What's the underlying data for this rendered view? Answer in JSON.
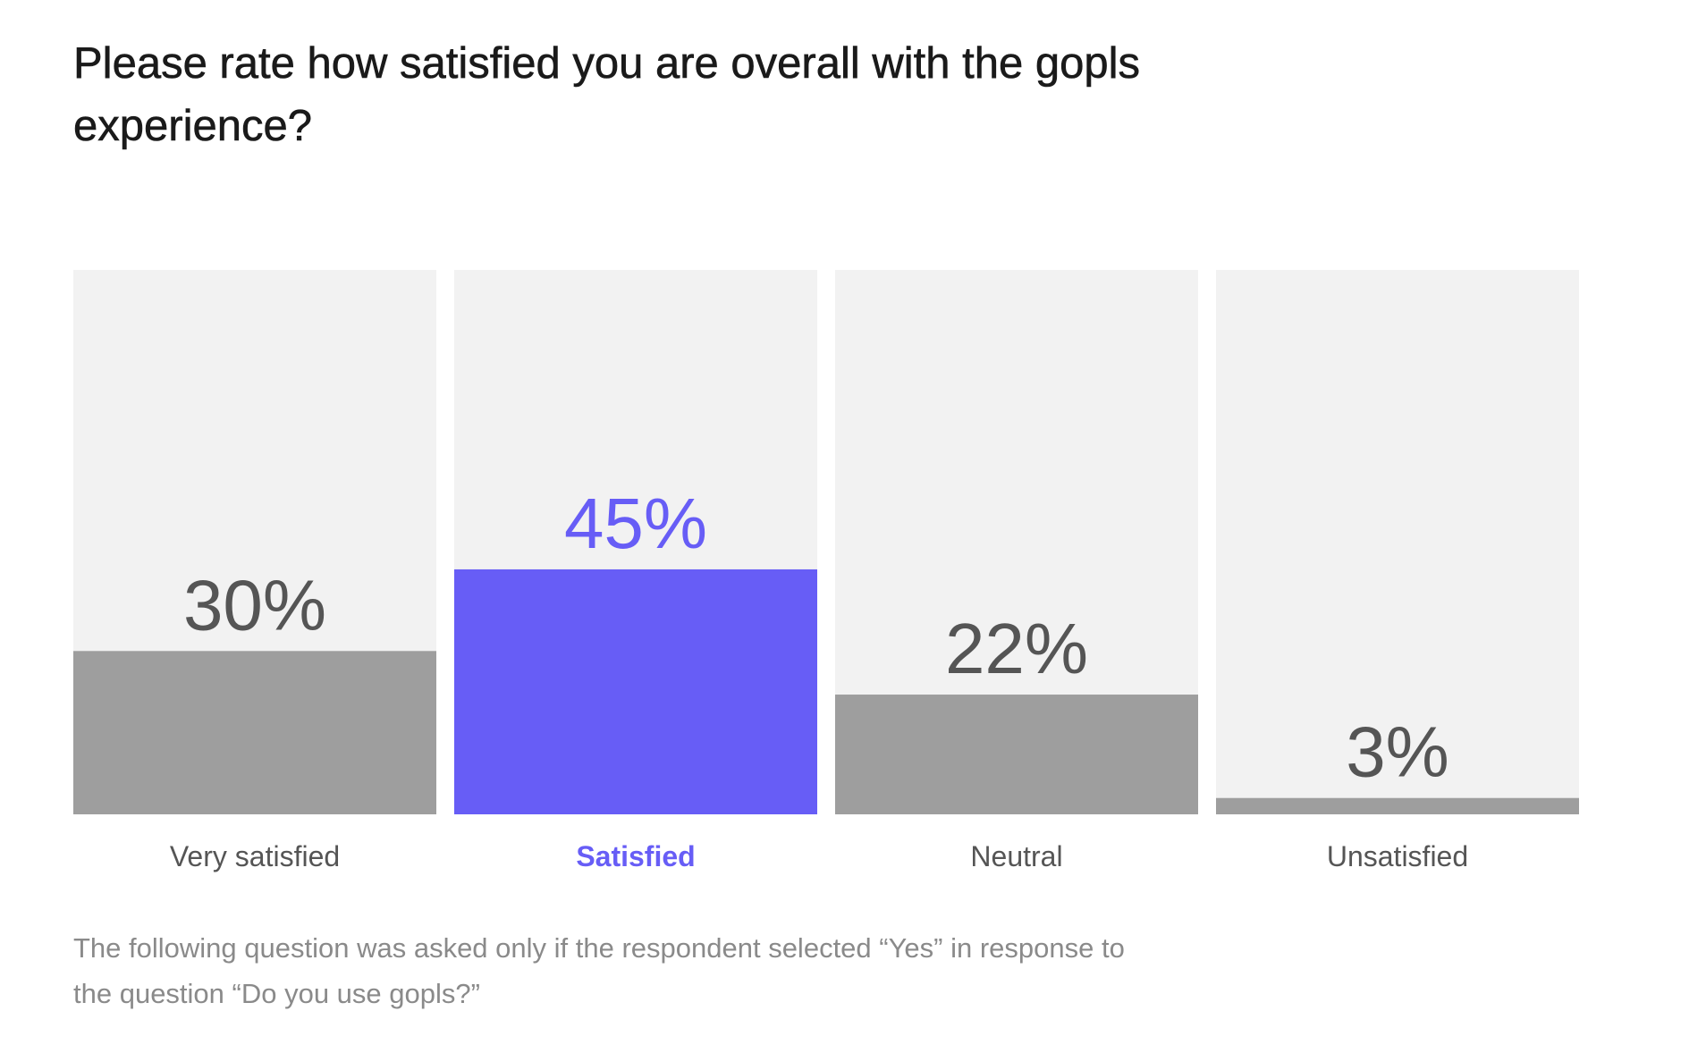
{
  "question": {
    "title": "Please rate how satisfied you are overall with the gopls experience?"
  },
  "footnote": "The following question was asked only if the respondent selected “Yes” in response to the question “Do you use gopls?”",
  "colors": {
    "highlight": "#675df6",
    "bar": "#9e9e9e",
    "track": "#f2f2f2",
    "value_text": "#555555",
    "label_text": "#555555"
  },
  "chart_data": {
    "type": "bar",
    "categories": [
      "Very satisfied",
      "Satisfied",
      "Neutral",
      "Unsatisfied"
    ],
    "values": [
      30,
      45,
      22,
      3
    ],
    "value_labels": [
      "30%",
      "45%",
      "22%",
      "3%"
    ],
    "highlighted": "Satisfied",
    "ylim": [
      0,
      100
    ],
    "unit": "%"
  }
}
